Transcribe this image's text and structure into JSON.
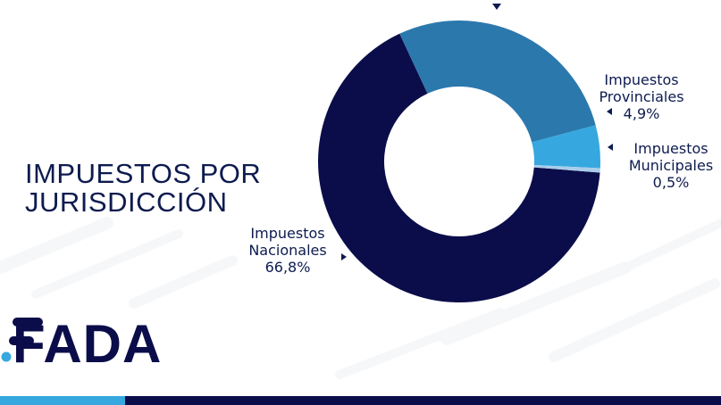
{
  "page": {
    "title_line1": "IMPUESTOS POR",
    "title_line2": "JURISDICCIÓN"
  },
  "logo": {
    "text": "FADA"
  },
  "colors": {
    "navy": "#0b0d4a",
    "steel_blue": "#2b78ad",
    "sky_blue": "#36a8df",
    "pale_blue": "#a9cdea",
    "text": "#0d1b4f",
    "bottom_bar": "#0b0d4a"
  },
  "chart_data": {
    "type": "pie",
    "variant": "donut",
    "title": "IMPUESTOS POR JURISDICCIÓN",
    "slices": [
      {
        "name": "Impuestos Nacionales",
        "label_line1": "Impuestos",
        "label_line2": "Nacionales",
        "value_label": "66,8%",
        "value": 66.8,
        "color": "#0b0d4a"
      },
      {
        "name": "unlabeled (cut off at top)",
        "value": 27.8,
        "color": "#2b78ad"
      },
      {
        "name": "Impuestos Provinciales",
        "label_line1": "Impuestos",
        "label_line2": "Provinciales",
        "value_label": "4,9%",
        "value": 4.9,
        "color": "#36a8df"
      },
      {
        "name": "Impuestos Municipales",
        "label_line1": "Impuestos",
        "label_line2": "Municipales",
        "value_label": "0,5%",
        "value": 0.5,
        "color": "#a9cdea"
      }
    ]
  }
}
